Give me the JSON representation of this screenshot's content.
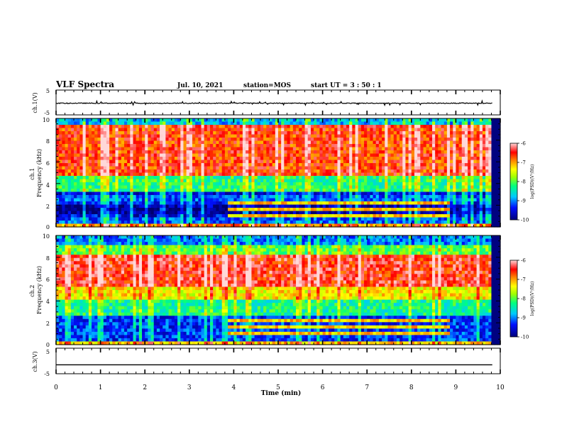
{
  "header": {
    "title": "VLF Spectra",
    "date": "Jul. 10, 2021",
    "station": "station=MOS",
    "start": "start UT = 3 : 50 : 1"
  },
  "colors": {
    "page_bg": "#ffffff",
    "axis": "#000000"
  },
  "chart_data": [
    {
      "type": "line",
      "panel": "ch1-waveform",
      "ylabel": "ch.1(V)",
      "ylim": [
        -5,
        5
      ],
      "yticks": [
        "5",
        "-5"
      ],
      "xlim": [
        0,
        10
      ],
      "series": [
        {
          "values": "approximately flat near -0.3 V with small spikes"
        }
      ]
    },
    {
      "type": "heatmap",
      "panel": "ch1-spectrogram",
      "ylabel": "ch.1\nFrequency (kHz)",
      "ylim": [
        0,
        10
      ],
      "yticks": [
        "0",
        "2",
        "4",
        "6",
        "8",
        "10"
      ],
      "xlim": [
        0,
        10
      ],
      "colorbar": {
        "label": "log(PSD)(V²/Hz)",
        "range": [
          -10,
          -6
        ],
        "ticks": [
          "-6",
          "-7",
          "-8",
          "-9",
          "-10"
        ]
      }
    },
    {
      "type": "heatmap",
      "panel": "ch2-spectrogram",
      "ylabel": "ch.2\nFrequency (kHz)",
      "ylim": [
        0,
        10
      ],
      "yticks": [
        "0",
        "2",
        "4",
        "6",
        "8",
        "10"
      ],
      "xlim": [
        0,
        10
      ],
      "colorbar": {
        "label": "log(PSD)(V²/Hz)",
        "range": [
          -10,
          -6
        ],
        "ticks": [
          "-6",
          "-7",
          "-8",
          "-9",
          "-10"
        ]
      }
    },
    {
      "type": "line",
      "panel": "ch3-waveform",
      "ylabel": "ch.3(V)",
      "ylim": [
        -5,
        5
      ],
      "yticks": [
        "5",
        "-5"
      ],
      "xlim": [
        0,
        10
      ],
      "series": [
        {
          "values": "flat at approximately -1.5 V"
        }
      ]
    }
  ],
  "xaxis": {
    "label": "Time (min)",
    "ticks": [
      "0",
      "1",
      "2",
      "3",
      "4",
      "5",
      "6",
      "7",
      "8",
      "9",
      "10"
    ]
  }
}
